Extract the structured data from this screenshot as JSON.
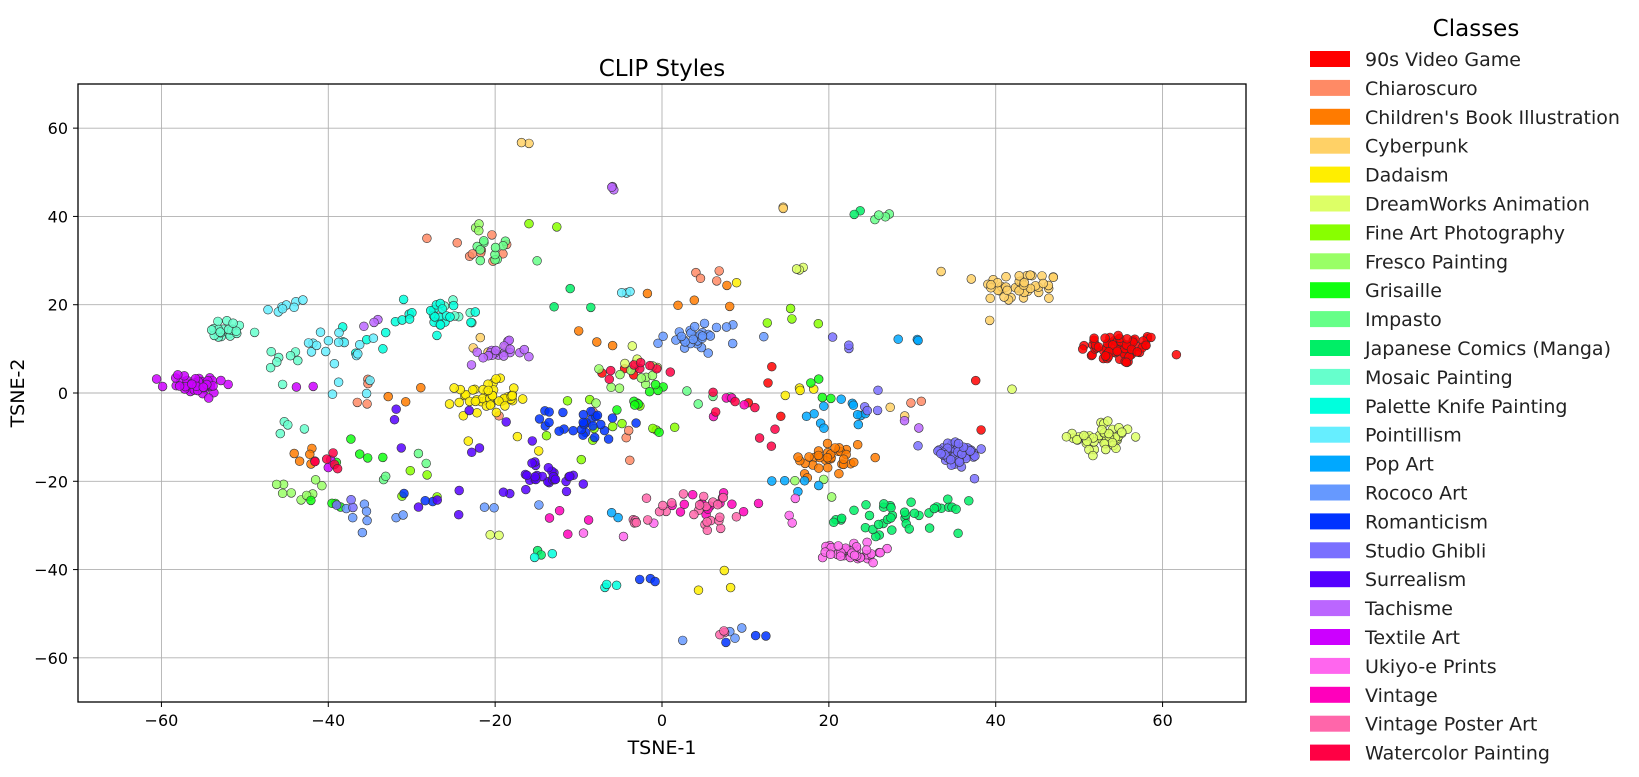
{
  "chart_data": {
    "type": "scatter",
    "title": "CLIP Styles",
    "xlabel": "TSNE-1",
    "ylabel": "TSNE-2",
    "xlim": [
      -70,
      70
    ],
    "ylim": [
      -70,
      70
    ],
    "xticks": [
      -60,
      -40,
      -20,
      0,
      20,
      40,
      60
    ],
    "yticks": [
      60,
      40,
      20,
      0,
      -20,
      -40,
      -60
    ],
    "xtick_labels": [
      "−60",
      "−40",
      "−20",
      "0",
      "20",
      "40",
      "60"
    ],
    "ytick_labels": [
      "60",
      "40",
      "20",
      "0",
      "−20",
      "−40",
      "−60"
    ],
    "grid": true,
    "legend": {
      "title": "Classes",
      "position": "outside-right"
    },
    "series": [
      {
        "name": "90s Video Game",
        "color": "#ff0000",
        "clusters": [
          [
            55,
            10,
            4,
            3,
            70
          ],
          [
            38,
            3,
            0.5,
            0.5,
            1
          ],
          [
            38,
            -8,
            0.5,
            0.5,
            1
          ],
          [
            -5,
            5,
            2,
            2,
            4
          ],
          [
            13,
            0,
            4,
            8,
            4
          ]
        ]
      },
      {
        "name": "Chiaroscuro",
        "color": "#ff8a65",
        "clusters": [
          [
            -22,
            33,
            4,
            3,
            10
          ],
          [
            -36,
            0,
            4,
            6,
            4
          ],
          [
            30,
            -2,
            1,
            1,
            2
          ],
          [
            -5,
            -8,
            6,
            10,
            5
          ],
          [
            5,
            26,
            4,
            3,
            4
          ]
        ]
      },
      {
        "name": "Children's Book Illustration",
        "color": "#ff7b00",
        "clusters": [
          [
            20,
            -15,
            4,
            4,
            35
          ],
          [
            -43,
            -14,
            2,
            2,
            5
          ],
          [
            6,
            22,
            6,
            3,
            5
          ],
          [
            -30,
            0,
            3,
            3,
            3
          ],
          [
            -8,
            12,
            4,
            4,
            3
          ]
        ]
      },
      {
        "name": "Cyberpunk",
        "color": "#ffd166",
        "clusters": [
          [
            43,
            24,
            4,
            3,
            45
          ],
          [
            33,
            28,
            1,
            1,
            1
          ],
          [
            15,
            42,
            1,
            1,
            2
          ],
          [
            -15,
            57,
            2,
            1,
            2
          ],
          [
            -23,
            8,
            5,
            5,
            4
          ],
          [
            27,
            -5,
            3,
            2,
            2
          ]
        ]
      },
      {
        "name": "Dadaism",
        "color": "#ffee00",
        "clusters": [
          [
            -21,
            -1,
            3,
            3,
            45
          ],
          [
            5,
            -43,
            3,
            2,
            3
          ],
          [
            -18,
            -10,
            5,
            5,
            3
          ],
          [
            9,
            25,
            1,
            1,
            1
          ],
          [
            17,
            0,
            3,
            3,
            4
          ]
        ]
      },
      {
        "name": "DreamWorks Animation",
        "color": "#ddff66",
        "clusters": [
          [
            53,
            -10,
            3,
            3,
            45
          ],
          [
            -2,
            8,
            3,
            3,
            6
          ],
          [
            42,
            1,
            0.5,
            0.5,
            1
          ],
          [
            -20,
            -32,
            1,
            1,
            2
          ],
          [
            17,
            28,
            2,
            2,
            3
          ]
        ]
      },
      {
        "name": "Fine Art Photography",
        "color": "#88ff00",
        "clusters": [
          [
            -5,
            -8,
            7,
            6,
            12
          ],
          [
            16,
            18,
            3,
            3,
            4
          ],
          [
            -28,
            -20,
            4,
            4,
            4
          ],
          [
            -14,
            38,
            2,
            1,
            2
          ]
        ]
      },
      {
        "name": "Fresco Painting",
        "color": "#99ff66",
        "clusters": [
          [
            -45,
            -22,
            3,
            2,
            10
          ],
          [
            -4,
            2,
            4,
            4,
            10
          ],
          [
            -22,
            38,
            2,
            2,
            3
          ],
          [
            17,
            -22,
            3,
            3,
            3
          ]
        ]
      },
      {
        "name": "Grisaille",
        "color": "#11ff11",
        "clusters": [
          [
            -2,
            -2,
            3,
            4,
            10
          ],
          [
            -37,
            -15,
            4,
            3,
            5
          ],
          [
            -40,
            -24,
            2,
            2,
            4
          ],
          [
            17,
            0,
            6,
            4,
            4
          ]
        ]
      },
      {
        "name": "Impasto",
        "color": "#66ff88",
        "clusters": [
          [
            -20,
            32,
            3,
            3,
            12
          ],
          [
            26,
            40,
            2,
            1,
            4
          ],
          [
            -32,
            -18,
            4,
            4,
            4
          ],
          [
            4,
            0,
            5,
            5,
            4
          ]
        ]
      },
      {
        "name": "Japanese Comics (Manga)",
        "color": "#00ee66",
        "clusters": [
          [
            29,
            -28,
            6,
            3,
            40
          ],
          [
            24,
            40,
            1,
            1,
            2
          ],
          [
            -10,
            21,
            5,
            3,
            3
          ],
          [
            -15,
            -36,
            1,
            1,
            2
          ]
        ]
      },
      {
        "name": "Mosaic Painting",
        "color": "#66ffcc",
        "clusters": [
          [
            -52,
            14,
            3,
            2,
            22
          ],
          [
            -45,
            6,
            3,
            4,
            8
          ],
          [
            -44,
            -8,
            2,
            3,
            4
          ],
          [
            -25,
            18,
            4,
            4,
            6
          ]
        ]
      },
      {
        "name": "Palette Knife Painting",
        "color": "#00ffdd",
        "clusters": [
          [
            -27,
            18,
            4,
            3,
            25
          ],
          [
            -35,
            12,
            3,
            3,
            6
          ],
          [
            -5,
            -44,
            2,
            1,
            3
          ],
          [
            -14,
            -37,
            2,
            1,
            2
          ]
        ]
      },
      {
        "name": "Pointillism",
        "color": "#66eeff",
        "clusters": [
          [
            -40,
            10,
            3,
            3,
            15
          ],
          [
            -45,
            20,
            3,
            2,
            8
          ],
          [
            -37,
            2,
            2,
            2,
            4
          ],
          [
            -5,
            23,
            2,
            1,
            3
          ]
        ]
      },
      {
        "name": "Pop Art",
        "color": "#00a8ff",
        "clusters": [
          [
            21,
            -5,
            4,
            3,
            12
          ],
          [
            16,
            -20,
            3,
            2,
            5
          ],
          [
            -7,
            -28,
            2,
            1,
            2
          ],
          [
            30,
            12,
            2,
            1,
            3
          ]
        ]
      },
      {
        "name": "Rococo Art",
        "color": "#6699ff",
        "clusters": [
          [
            5,
            13,
            4,
            3,
            30
          ],
          [
            -35,
            -27,
            3,
            2,
            8
          ],
          [
            7,
            -55,
            3,
            2,
            4
          ],
          [
            -20,
            -25,
            3,
            3,
            3
          ]
        ]
      },
      {
        "name": "Romanticism",
        "color": "#0033ff",
        "clusters": [
          [
            -9,
            -7,
            4,
            3,
            28
          ],
          [
            -3,
            -43,
            2,
            1,
            3
          ],
          [
            10,
            -56,
            2,
            1,
            3
          ],
          [
            -30,
            -25,
            3,
            3,
            3
          ]
        ]
      },
      {
        "name": "Studio Ghibli",
        "color": "#7a70ff",
        "clusters": [
          [
            35,
            -14,
            3,
            3,
            45
          ],
          [
            25,
            -2,
            2,
            2,
            4
          ],
          [
            -38,
            -25,
            2,
            2,
            3
          ],
          [
            22,
            12,
            2,
            2,
            3
          ]
        ]
      },
      {
        "name": "Surrealism",
        "color": "#5500ff",
        "clusters": [
          [
            -14,
            -19,
            4,
            3,
            30
          ],
          [
            -25,
            -25,
            3,
            3,
            4
          ],
          [
            -20,
            -10,
            5,
            5,
            5
          ],
          [
            -30,
            -8,
            3,
            3,
            3
          ]
        ]
      },
      {
        "name": "Tachisme",
        "color": "#bb66ff",
        "clusters": [
          [
            -20,
            9,
            3,
            2,
            20
          ],
          [
            -6,
            46,
            1,
            1,
            3
          ],
          [
            -34,
            15,
            2,
            2,
            3
          ],
          [
            30,
            -8,
            2,
            2,
            2
          ]
        ]
      },
      {
        "name": "Textile Art",
        "color": "#cc00ff",
        "clusters": [
          [
            -56,
            2,
            3,
            2,
            45
          ],
          [
            -43,
            1,
            2,
            2,
            2
          ],
          [
            -40,
            -15,
            2,
            2,
            2
          ]
        ]
      },
      {
        "name": "Ukiyo-e Prints",
        "color": "#ff66ee",
        "clusters": [
          [
            23,
            -36,
            3,
            2,
            40
          ],
          [
            14,
            -28,
            2,
            2,
            3
          ],
          [
            -5,
            -30,
            3,
            3,
            3
          ]
        ]
      },
      {
        "name": "Vintage",
        "color": "#ff00bb",
        "clusters": [
          [
            6,
            -25,
            5,
            3,
            15
          ],
          [
            -10,
            -28,
            3,
            3,
            4
          ],
          [
            8,
            -3,
            4,
            3,
            4
          ]
        ]
      },
      {
        "name": "Vintage Poster Art",
        "color": "#ff66aa",
        "clusters": [
          [
            5,
            -27,
            5,
            4,
            22
          ],
          [
            -3,
            -28,
            2,
            2,
            5
          ],
          [
            7,
            -54,
            2,
            1,
            3
          ]
        ]
      },
      {
        "name": "Watercolor Painting",
        "color": "#ff0044",
        "clusters": [
          [
            -3,
            5,
            3,
            2,
            8
          ],
          [
            -40,
            -15,
            2,
            2,
            6
          ],
          [
            7,
            -3,
            3,
            3,
            4
          ],
          [
            12,
            -10,
            3,
            3,
            3
          ]
        ]
      }
    ]
  }
}
